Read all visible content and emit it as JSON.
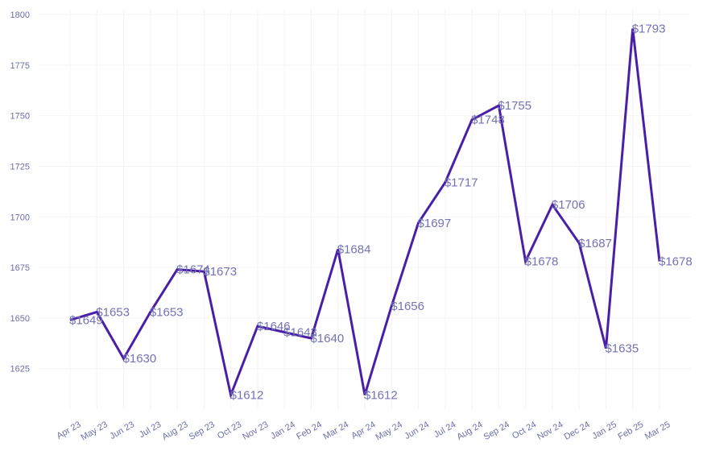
{
  "chart_data": {
    "type": "line",
    "title": "",
    "xlabel": "",
    "ylabel": "",
    "ylim": [
      1605,
      1800
    ],
    "yticks": [
      1625,
      1650,
      1675,
      1700,
      1725,
      1750,
      1775,
      1800
    ],
    "grid": true,
    "series_color": "#4a1fa8",
    "label_color": "#7273b4",
    "categories": [
      "Apr 23",
      "May 23",
      "Jun 23",
      "Jul 23",
      "Aug 23",
      "Sep 23",
      "Oct 23",
      "Nov 23",
      "Jan 24",
      "Feb 24",
      "Mar 24",
      "Apr 24",
      "May 24",
      "Jun 24",
      "Jul 24",
      "Aug 24",
      "Sep 24",
      "Oct 24",
      "Nov 24",
      "Dec 24",
      "Jan 25",
      "Feb 25",
      "Mar 25"
    ],
    "values": [
      1649,
      1653,
      1630,
      1653,
      1674,
      1673,
      1612,
      1646,
      1643,
      1640,
      1684,
      1612,
      1656,
      1697,
      1717,
      1748,
      1755,
      1678,
      1706,
      1687,
      1635,
      1793,
      1678
    ],
    "labels": [
      "$1649",
      "$1653",
      "$1630",
      "$1653",
      "$1674",
      "$1673",
      "$1612",
      "$1646",
      "$1643",
      "$1640",
      "$1684",
      "$1612",
      "$1656",
      "$1697",
      "$1717",
      "$1748",
      "$1755",
      "$1678",
      "$1706",
      "$1687",
      "$1635",
      "$1793",
      "$1678"
    ]
  }
}
